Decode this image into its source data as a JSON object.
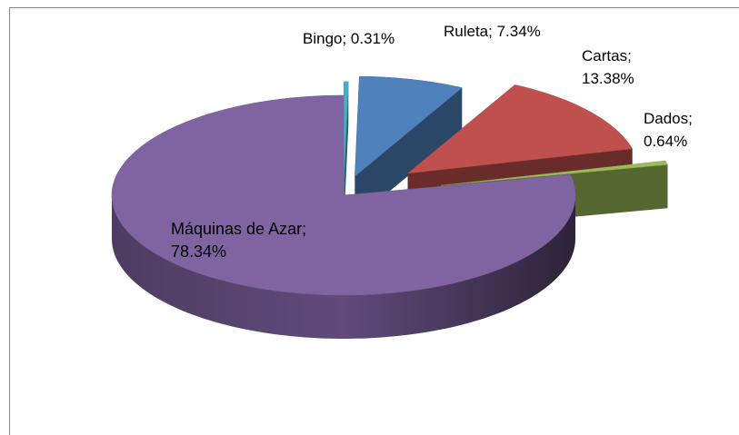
{
  "chart_data": {
    "type": "pie3d",
    "values": [
      0.31,
      7.34,
      13.38,
      0.64,
      78.34
    ],
    "value_labels": [
      "Bingo; 0.31%",
      "Ruleta; 7.34%",
      "Cartas; 13.38%",
      "Dados; 0.64%",
      "Máquinas de Azar; 78.34%"
    ],
    "colors": [
      "#4bacc6",
      "#4f81bd",
      "#c0504d",
      "#9bbb59",
      "#8064a2"
    ]
  }
}
